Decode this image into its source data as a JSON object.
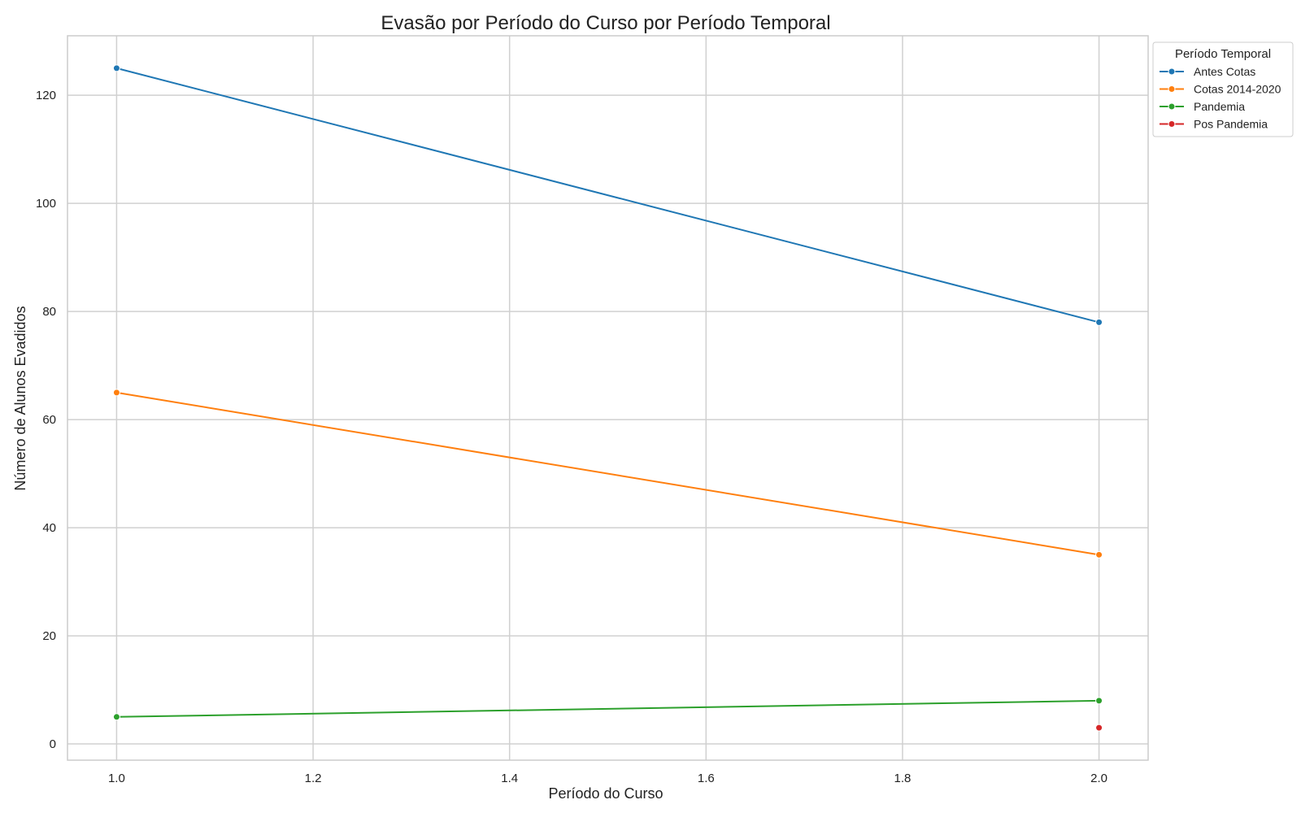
{
  "chart_data": {
    "type": "line",
    "title": "Evasão por Período do Curso por Período Temporal",
    "xlabel": "Período do Curso",
    "ylabel": "Número de Alunos Evadidos",
    "xlim": [
      0.95,
      2.05
    ],
    "ylim": [
      -3,
      131
    ],
    "x_ticks": [
      1.0,
      1.2,
      1.4,
      1.6,
      1.8,
      2.0
    ],
    "x_tick_labels": [
      "1.0",
      "1.2",
      "1.4",
      "1.6",
      "1.8",
      "2.0"
    ],
    "y_ticks": [
      0,
      20,
      40,
      60,
      80,
      100,
      120
    ],
    "y_tick_labels": [
      "0",
      "20",
      "40",
      "60",
      "80",
      "100",
      "120"
    ],
    "grid": true,
    "legend": {
      "title": "Período Temporal",
      "placement": "outside-top-right"
    },
    "series": [
      {
        "name": "Antes Cotas",
        "color": "#1f77b4",
        "x": [
          1.0,
          2.0
        ],
        "y": [
          125,
          78
        ]
      },
      {
        "name": "Cotas 2014-2020",
        "color": "#ff7f0e",
        "x": [
          1.0,
          2.0
        ],
        "y": [
          65,
          35
        ]
      },
      {
        "name": "Pandemia",
        "color": "#2ca02c",
        "x": [
          1.0,
          2.0
        ],
        "y": [
          5,
          8
        ]
      },
      {
        "name": "Pos Pandemia",
        "color": "#d62728",
        "x": [
          2.0
        ],
        "y": [
          3
        ]
      }
    ]
  }
}
